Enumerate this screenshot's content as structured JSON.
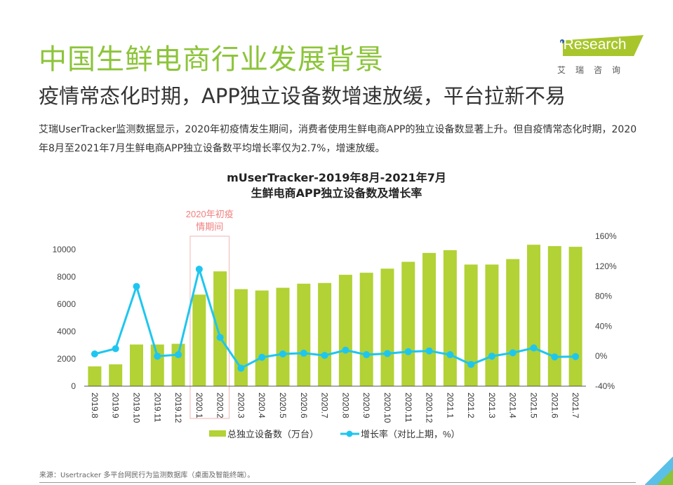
{
  "header": {
    "title": "中国生鲜电商行业发展背景",
    "subtitle": "疫情常态化时期，APP独立设备数增速放缓，平台拉新不易",
    "description": "艾瑞UserTracker监测数据显示，2020年初疫情发生期间，消费者使用生鲜电商APP的独立设备数显著上升。但自疫情常态化时期，2020年8月至2021年7月生鲜电商APP独立设备数平均增长率仅为2.7%，增速放缓。"
  },
  "logo": {
    "text": "iResearch",
    "cn": "艾瑞咨询"
  },
  "footer": {
    "source": "来源：Usertracker 多平台网民行为监测数据库（桌面及智能终端）。"
  },
  "chart_data": {
    "type": "bar+line",
    "title_line1": "mUserTracker-2019年8月-2021年7月",
    "title_line2": "生鲜电商APP独立设备数及增长率",
    "annotation": {
      "text_line1": "2020年初疫",
      "text_line2": "情期间",
      "categories": [
        "2020.1",
        "2020.2"
      ],
      "color": "#f08080"
    },
    "categories": [
      "2019.8",
      "2019.9",
      "2019.10",
      "2019.11",
      "2019.12",
      "2020.1",
      "2020.2",
      "2020.3",
      "2020.4",
      "2020.5",
      "2020.6",
      "2020.7",
      "2020.8",
      "2020.9",
      "2020.10",
      "2020.11",
      "2020.12",
      "2021.1",
      "2021.2",
      "2021.3",
      "2021.4",
      "2021.5",
      "2021.6",
      "2021.7"
    ],
    "series": [
      {
        "name": "总独立设备数（万台）",
        "type": "bar",
        "axis": "left",
        "color": "#b2d235",
        "values": [
          1450,
          1600,
          3050,
          3050,
          3100,
          6700,
          8400,
          7100,
          7000,
          7200,
          7500,
          7550,
          8150,
          8300,
          8600,
          9100,
          9750,
          9950,
          8900,
          8900,
          9300,
          10350,
          10250,
          10200
        ]
      },
      {
        "name": "增长率（对比上期，%）",
        "type": "line",
        "axis": "right",
        "color": "#1ec6ef",
        "values": [
          3,
          10,
          93,
          0,
          2,
          116,
          25,
          -16,
          -1.5,
          3,
          4,
          1,
          8,
          2,
          3.5,
          6,
          7,
          2,
          -11,
          0,
          4.5,
          11,
          -1,
          -0.5
        ]
      }
    ],
    "y_left": {
      "ylim": [
        0,
        10000
      ],
      "ticks": [
        "0",
        "2000",
        "4000",
        "6000",
        "8000",
        "10000"
      ]
    },
    "y_right": {
      "ylim": [
        -40,
        160
      ],
      "ticks": [
        "-40%",
        "0%",
        "40%",
        "80%",
        "120%",
        "160%"
      ]
    },
    "legend": "bottom",
    "grid": false
  }
}
